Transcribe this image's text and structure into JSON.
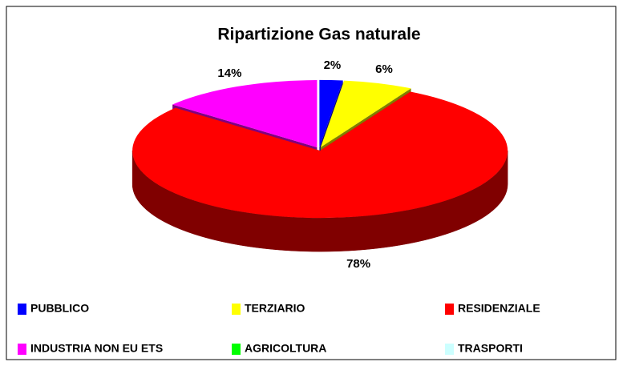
{
  "chart_data": {
    "type": "pie3d",
    "title": "Ripartizione Gas naturale",
    "categories": [
      "PUBBLICO",
      "TERZIARIO",
      "RESIDENZIALE",
      "INDUSTRIA NON EU ETS",
      "AGRICOLTURA",
      "TRASPORTI"
    ],
    "values": [
      2,
      6,
      78,
      14,
      0,
      0
    ],
    "value_labels": [
      "2%",
      "6%",
      "78%",
      "14%",
      null,
      null
    ],
    "colors": [
      "#0000ff",
      "#ffff00",
      "#ff0000",
      "#ff00ff",
      "#00ff00",
      "#ccffff"
    ],
    "side_colors": [
      "#00008b",
      "#808000",
      "#800000",
      "#800080",
      "#008000",
      "#99cccc"
    ],
    "legend": "bottom"
  }
}
